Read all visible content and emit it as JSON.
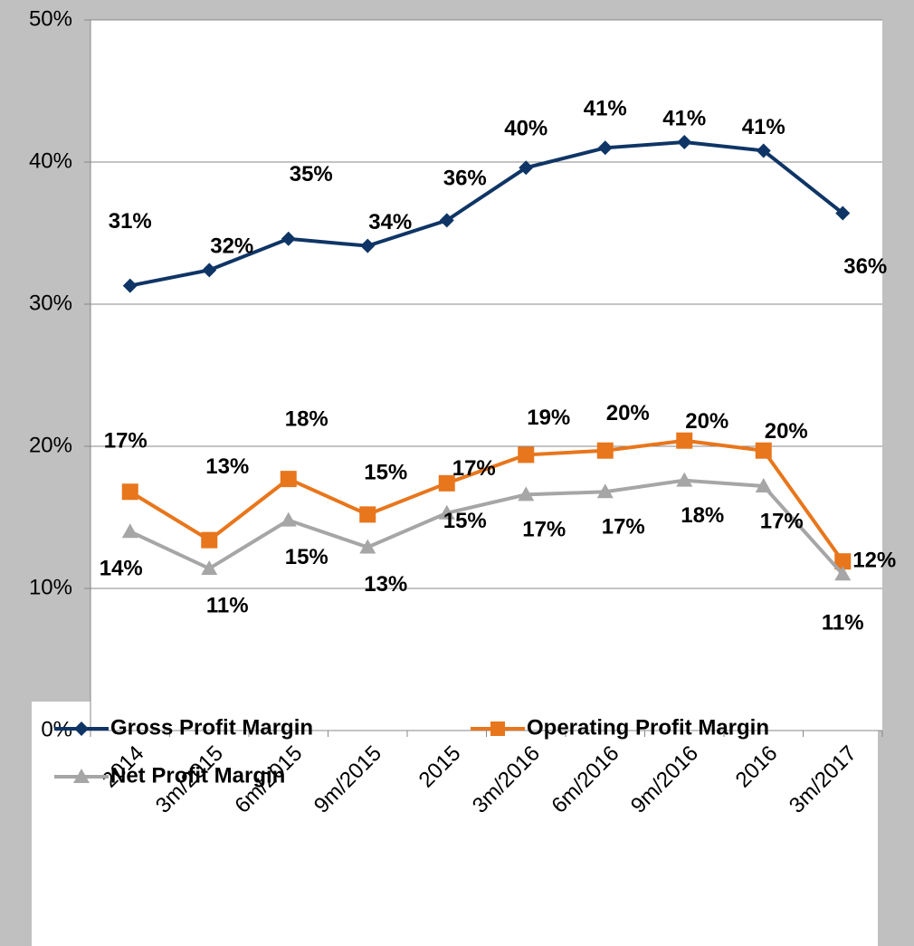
{
  "chart_data": {
    "type": "line",
    "categories": [
      "2014",
      "3m/2015",
      "6m/2015",
      "9m/2015",
      "2015",
      "3m/2016",
      "6m/2016",
      "9m/2016",
      "2016",
      "3m/2017"
    ],
    "series": [
      {
        "name": "Gross Profit Margin",
        "color": "#0f3566",
        "marker": "diamond",
        "values": [
          31.3,
          32.4,
          34.6,
          34.1,
          35.9,
          39.6,
          41.0,
          41.4,
          40.8,
          36.4
        ],
        "value_labels": [
          "31%",
          "32%",
          "35%",
          "34%",
          "36%",
          "40%",
          "41%",
          "41%",
          "41%",
          "36%"
        ]
      },
      {
        "name": "Operating Profit Margin",
        "color": "#e8761c",
        "marker": "square",
        "values": [
          16.8,
          13.4,
          17.7,
          15.2,
          17.4,
          19.4,
          19.7,
          20.4,
          19.7,
          11.9
        ],
        "value_labels": [
          "17%",
          "13%",
          "18%",
          "15%",
          "17%",
          "19%",
          "20%",
          "20%",
          "20%",
          "12%"
        ]
      },
      {
        "name": "Net Profit Margin",
        "color": "#a6a6a6",
        "marker": "triangle",
        "values": [
          14.0,
          11.4,
          14.8,
          12.9,
          15.3,
          16.6,
          16.8,
          17.6,
          17.2,
          11.0
        ],
        "value_labels": [
          "14%",
          "11%",
          "15%",
          "13%",
          "15%",
          "17%",
          "17%",
          "18%",
          "17%",
          "11%"
        ]
      }
    ],
    "ylim": [
      0,
      50
    ],
    "yticks": [
      {
        "value": 0,
        "label": "0%"
      },
      {
        "value": 10,
        "label": "10%"
      },
      {
        "value": 20,
        "label": "20%"
      },
      {
        "value": 30,
        "label": "30%"
      },
      {
        "value": 40,
        "label": "40%"
      },
      {
        "value": 50,
        "label": "50%"
      }
    ],
    "grid": true,
    "legend": "bottom"
  }
}
